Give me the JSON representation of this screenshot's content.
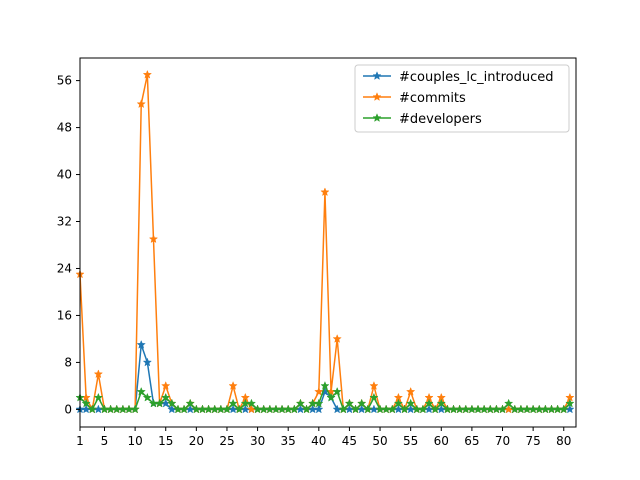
{
  "chart_data": {
    "type": "line",
    "title": "",
    "xlabel": "",
    "ylabel": "",
    "xlim": [
      1,
      82
    ],
    "ylim": [
      -3,
      59.85
    ],
    "xticks": [
      1,
      5,
      10,
      15,
      20,
      25,
      30,
      35,
      40,
      45,
      50,
      55,
      60,
      65,
      70,
      75,
      80
    ],
    "yticks": [
      0,
      8,
      16,
      24,
      32,
      40,
      48,
      56
    ],
    "grid": false,
    "legend_position": "top-right",
    "x": [
      1,
      2,
      3,
      4,
      5,
      6,
      7,
      8,
      9,
      10,
      11,
      12,
      13,
      14,
      15,
      16,
      17,
      18,
      19,
      20,
      21,
      22,
      23,
      24,
      25,
      26,
      27,
      28,
      29,
      30,
      31,
      32,
      33,
      34,
      35,
      36,
      37,
      38,
      39,
      40,
      41,
      42,
      43,
      44,
      45,
      46,
      47,
      48,
      49,
      50,
      51,
      52,
      53,
      54,
      55,
      56,
      57,
      58,
      59,
      60,
      61,
      62,
      63,
      64,
      65,
      66,
      67,
      68,
      69,
      70,
      71,
      72,
      73,
      74,
      75,
      76,
      77,
      78,
      79,
      80,
      81
    ],
    "series": [
      {
        "name": "#couples_lc_introduced",
        "color": "#1f77b4",
        "values": [
          0,
          0,
          0,
          0,
          0,
          0,
          0,
          0,
          0,
          0,
          11,
          8,
          1,
          1,
          1,
          0,
          0,
          0,
          0,
          0,
          0,
          0,
          0,
          0,
          0,
          0,
          0,
          0,
          0,
          0,
          0,
          0,
          0,
          0,
          0,
          0,
          0,
          0,
          0,
          0,
          3,
          2,
          0,
          0,
          0,
          0,
          0,
          0,
          0,
          0,
          0,
          0,
          0,
          0,
          0,
          0,
          0,
          0,
          0,
          0,
          0,
          0,
          0,
          0,
          0,
          0,
          0,
          0,
          0,
          0,
          0,
          0,
          0,
          0,
          0,
          0,
          0,
          0,
          0,
          0,
          0
        ]
      },
      {
        "name": "#commits",
        "color": "#ff7f0e",
        "values": [
          23,
          2,
          0,
          6,
          0,
          0,
          0,
          0,
          0,
          0,
          52,
          57,
          29,
          1,
          4,
          1,
          0,
          0,
          1,
          0,
          0,
          0,
          0,
          0,
          0,
          4,
          0,
          2,
          0,
          0,
          0,
          0,
          0,
          0,
          0,
          0,
          1,
          0,
          1,
          3,
          37,
          3,
          12,
          0,
          1,
          0,
          1,
          0,
          4,
          0,
          0,
          0,
          2,
          0,
          3,
          0,
          0,
          2,
          0,
          2,
          0,
          0,
          0,
          0,
          0,
          0,
          0,
          0,
          0,
          0,
          0,
          0,
          0,
          0,
          0,
          0,
          0,
          0,
          0,
          0,
          2
        ]
      },
      {
        "name": "#developers",
        "color": "#2ca02c",
        "values": [
          2,
          1,
          0,
          2,
          0,
          0,
          0,
          0,
          0,
          0,
          3,
          2,
          1,
          1,
          2,
          1,
          0,
          0,
          1,
          0,
          0,
          0,
          0,
          0,
          0,
          1,
          0,
          1,
          1,
          0,
          0,
          0,
          0,
          0,
          0,
          0,
          1,
          0,
          1,
          1,
          4,
          2,
          3,
          0,
          1,
          0,
          1,
          0,
          2,
          0,
          0,
          0,
          1,
          0,
          1,
          0,
          0,
          1,
          0,
          1,
          0,
          0,
          0,
          0,
          0,
          0,
          0,
          0,
          0,
          0,
          1,
          0,
          0,
          0,
          0,
          0,
          0,
          0,
          0,
          0,
          1
        ]
      }
    ]
  }
}
